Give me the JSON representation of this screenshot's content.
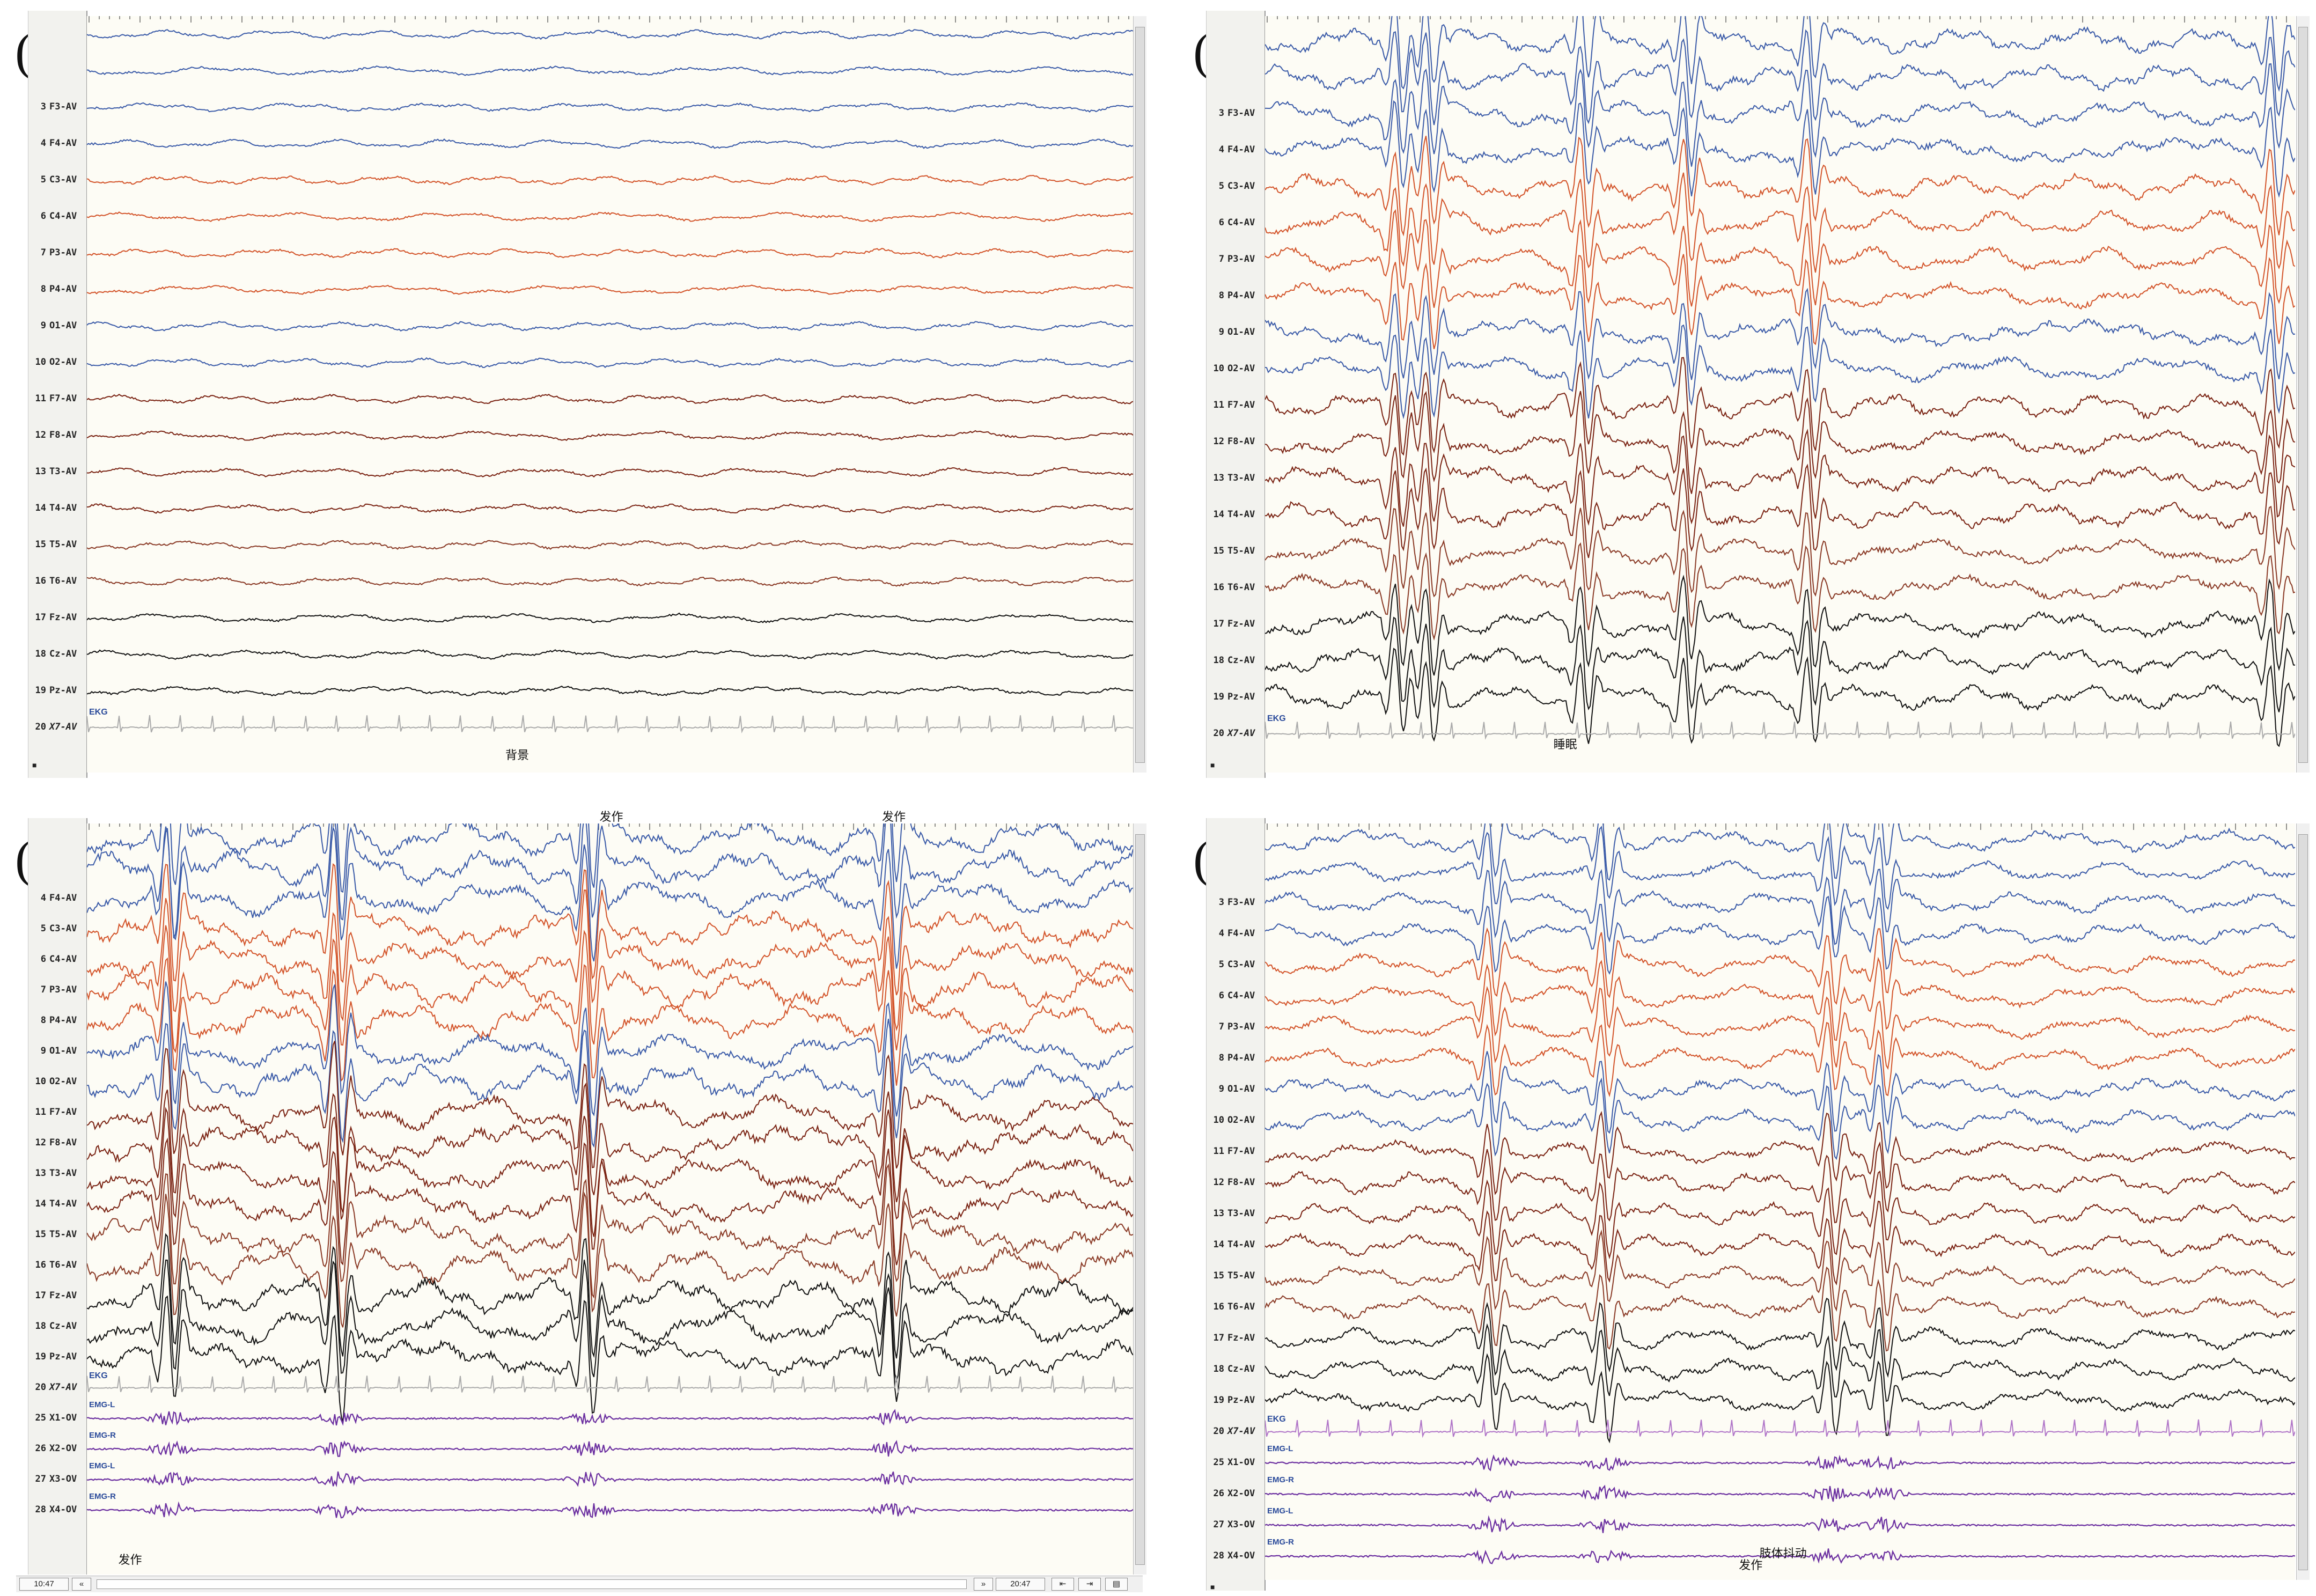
{
  "colors": {
    "blue": "#3b5ba8",
    "orange": "#d3542a",
    "maroon": "#7a2313",
    "brown": "#8a3a26",
    "black": "#111111",
    "gray": "#9a9a9a",
    "purple": "#6b2fa0",
    "plot_bg": "#fdfcf5"
  },
  "panels": [
    {
      "letter": "(a)",
      "channels": [
        {
          "num": "3",
          "name": "F3-AV",
          "group": "blue"
        },
        {
          "num": "4",
          "name": "F4-AV",
          "group": "blue"
        },
        {
          "num": "5",
          "name": "C3-AV",
          "group": "orange"
        },
        {
          "num": "6",
          "name": "C4-AV",
          "group": "orange"
        },
        {
          "num": "7",
          "name": "P3-AV",
          "group": "orange"
        },
        {
          "num": "8",
          "name": "P4-AV",
          "group": "orange"
        },
        {
          "num": "9",
          "name": "O1-AV",
          "group": "blue"
        },
        {
          "num": "10",
          "name": "O2-AV",
          "group": "blue"
        },
        {
          "num": "11",
          "name": "F7-AV",
          "group": "maroon"
        },
        {
          "num": "12",
          "name": "F8-AV",
          "group": "maroon"
        },
        {
          "num": "13",
          "name": "T3-AV",
          "group": "maroon"
        },
        {
          "num": "14",
          "name": "T4-AV",
          "group": "maroon"
        },
        {
          "num": "15",
          "name": "T5-AV",
          "group": "brown"
        },
        {
          "num": "16",
          "name": "T6-AV",
          "group": "brown"
        },
        {
          "num": "17",
          "name": "Fz-AV",
          "group": "black"
        },
        {
          "num": "18",
          "name": "Cz-AV",
          "group": "black"
        },
        {
          "num": "19",
          "name": "Pz-AV",
          "group": "black"
        },
        {
          "num": "20",
          "name": "X7-AV",
          "group": "gray"
        }
      ],
      "ekg_label": "EKG",
      "annotations": [
        "背景"
      ],
      "bottom_marker": "■"
    },
    {
      "letter": "(b)",
      "channels": [
        {
          "num": "3",
          "name": "F3-AV",
          "group": "blue"
        },
        {
          "num": "4",
          "name": "F4-AV",
          "group": "blue"
        },
        {
          "num": "5",
          "name": "C3-AV",
          "group": "orange"
        },
        {
          "num": "6",
          "name": "C4-AV",
          "group": "orange"
        },
        {
          "num": "7",
          "name": "P3-AV",
          "group": "orange"
        },
        {
          "num": "8",
          "name": "P4-AV",
          "group": "orange"
        },
        {
          "num": "9",
          "name": "O1-AV",
          "group": "blue"
        },
        {
          "num": "10",
          "name": "O2-AV",
          "group": "blue"
        },
        {
          "num": "11",
          "name": "F7-AV",
          "group": "maroon"
        },
        {
          "num": "12",
          "name": "F8-AV",
          "group": "maroon"
        },
        {
          "num": "13",
          "name": "T3-AV",
          "group": "maroon"
        },
        {
          "num": "14",
          "name": "T4-AV",
          "group": "maroon"
        },
        {
          "num": "15",
          "name": "T5-AV",
          "group": "brown"
        },
        {
          "num": "16",
          "name": "T6-AV",
          "group": "brown"
        },
        {
          "num": "17",
          "name": "Fz-AV",
          "group": "black"
        },
        {
          "num": "18",
          "name": "Cz-AV",
          "group": "black"
        },
        {
          "num": "19",
          "name": "Pz-AV",
          "group": "black"
        },
        {
          "num": "20",
          "name": "X7-AV",
          "group": "gray"
        }
      ],
      "ekg_label": "EKG",
      "annotations": [
        "睡眠"
      ],
      "bottom_marker": "■"
    },
    {
      "letter": "(c)",
      "channels": [
        {
          "num": "4",
          "name": "F4-AV",
          "group": "blue"
        },
        {
          "num": "5",
          "name": "C3-AV",
          "group": "orange"
        },
        {
          "num": "6",
          "name": "C4-AV",
          "group": "orange"
        },
        {
          "num": "7",
          "name": "P3-AV",
          "group": "orange"
        },
        {
          "num": "8",
          "name": "P4-AV",
          "group": "orange"
        },
        {
          "num": "9",
          "name": "O1-AV",
          "group": "blue"
        },
        {
          "num": "10",
          "name": "O2-AV",
          "group": "blue"
        },
        {
          "num": "11",
          "name": "F7-AV",
          "group": "maroon"
        },
        {
          "num": "12",
          "name": "F8-AV",
          "group": "maroon"
        },
        {
          "num": "13",
          "name": "T3-AV",
          "group": "maroon"
        },
        {
          "num": "14",
          "name": "T4-AV",
          "group": "maroon"
        },
        {
          "num": "15",
          "name": "T5-AV",
          "group": "brown"
        },
        {
          "num": "16",
          "name": "T6-AV",
          "group": "brown"
        },
        {
          "num": "17",
          "name": "Fz-AV",
          "group": "black"
        },
        {
          "num": "18",
          "name": "Cz-AV",
          "group": "black"
        },
        {
          "num": "19",
          "name": "Pz-AV",
          "group": "black"
        },
        {
          "num": "20",
          "name": "X7-AV",
          "group": "gray"
        },
        {
          "num": "25",
          "name": "X1-OV",
          "group": "purple"
        },
        {
          "num": "26",
          "name": "X2-OV",
          "group": "purple"
        },
        {
          "num": "27",
          "name": "X3-OV",
          "group": "purple"
        },
        {
          "num": "28",
          "name": "X4-OV",
          "group": "purple"
        }
      ],
      "ekg_label": "EKG",
      "emg_labels": [
        "EMG-L",
        "EMG-R",
        "EMG-L",
        "EMG-R"
      ],
      "annotations": [
        "发作",
        "发作",
        "发作"
      ],
      "bottom_left": "10:47",
      "bottom_right": "20:47"
    },
    {
      "letter": "(d)",
      "channels": [
        {
          "num": "3",
          "name": "F3-AV",
          "group": "blue"
        },
        {
          "num": "4",
          "name": "F4-AV",
          "group": "blue"
        },
        {
          "num": "5",
          "name": "C3-AV",
          "group": "orange"
        },
        {
          "num": "6",
          "name": "C4-AV",
          "group": "orange"
        },
        {
          "num": "7",
          "name": "P3-AV",
          "group": "orange"
        },
        {
          "num": "8",
          "name": "P4-AV",
          "group": "orange"
        },
        {
          "num": "9",
          "name": "O1-AV",
          "group": "blue"
        },
        {
          "num": "10",
          "name": "O2-AV",
          "group": "blue"
        },
        {
          "num": "11",
          "name": "F7-AV",
          "group": "maroon"
        },
        {
          "num": "12",
          "name": "F8-AV",
          "group": "maroon"
        },
        {
          "num": "13",
          "name": "T3-AV",
          "group": "maroon"
        },
        {
          "num": "14",
          "name": "T4-AV",
          "group": "maroon"
        },
        {
          "num": "15",
          "name": "T5-AV",
          "group": "brown"
        },
        {
          "num": "16",
          "name": "T6-AV",
          "group": "brown"
        },
        {
          "num": "17",
          "name": "Fz-AV",
          "group": "black"
        },
        {
          "num": "18",
          "name": "Cz-AV",
          "group": "black"
        },
        {
          "num": "19",
          "name": "Pz-AV",
          "group": "black"
        },
        {
          "num": "20",
          "name": "X7-AV",
          "group": "gray"
        },
        {
          "num": "25",
          "name": "X1-OV",
          "group": "purple"
        },
        {
          "num": "26",
          "name": "X2-OV",
          "group": "purple"
        },
        {
          "num": "27",
          "name": "X3-OV",
          "group": "purple"
        },
        {
          "num": "28",
          "name": "X4-OV",
          "group": "purple"
        }
      ],
      "ekg_label": "EKG",
      "emg_labels": [
        "EMG-L",
        "EMG-R",
        "EMG-L",
        "EMG-R"
      ],
      "annotations": [
        "肢体抖动",
        "发作"
      ],
      "bottom_marker": "■"
    }
  ]
}
